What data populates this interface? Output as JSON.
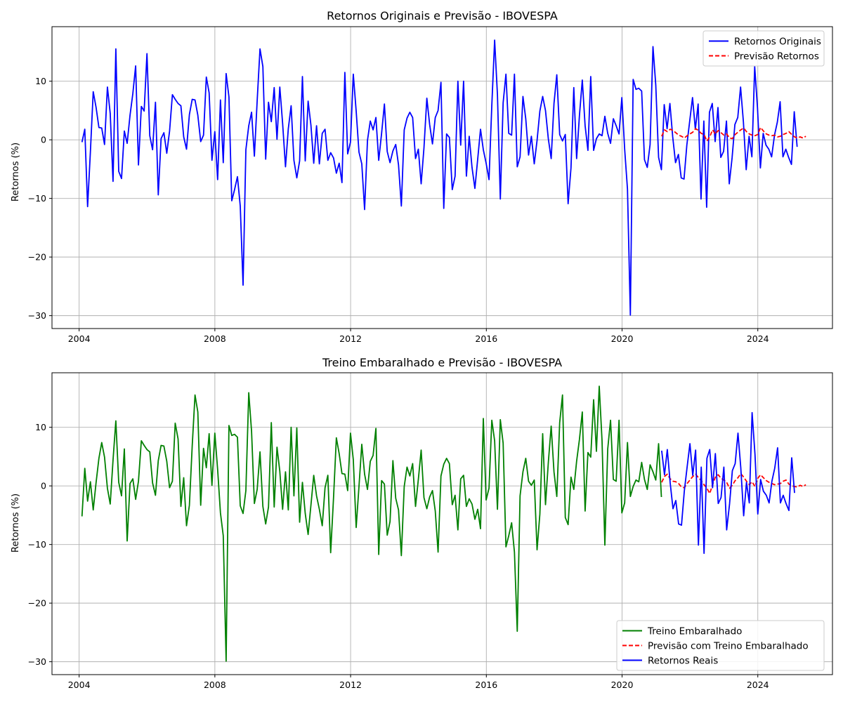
{
  "chart_data": [
    {
      "type": "line",
      "title": "Retornos Originais e Previsão - IBOVESPA",
      "xlabel": "",
      "ylabel": "Retornos (%)",
      "xlim": [
        2003.2,
        2026.2
      ],
      "ylim": [
        -32.2,
        19.3
      ],
      "xticks": [
        2004,
        2008,
        2012,
        2016,
        2020,
        2024
      ],
      "xtick_labels": [
        "2004",
        "2008",
        "2012",
        "2016",
        "2020",
        "2024"
      ],
      "yticks": [
        -30,
        -20,
        -10,
        0,
        10
      ],
      "ytick_labels": [
        "−30",
        "−20",
        "−10",
        "0",
        "10"
      ],
      "grid": true,
      "legend": "top-right",
      "series": [
        {
          "name": "Retornos Originais",
          "color": "#0000ff",
          "dash": "solid",
          "x_start": 2004.083,
          "x_step": 0.0833,
          "values": [
            -0.4,
            1.8,
            -11.4,
            -2.0,
            8.2,
            5.5,
            2.1,
            2.0,
            -0.8,
            9.0,
            4.5,
            -7.1,
            15.5,
            -5.4,
            -6.6,
            1.5,
            -0.6,
            4.2,
            7.9,
            12.6,
            -4.3,
            5.7,
            4.9,
            14.7,
            0.7,
            -1.7,
            6.4,
            -9.4,
            0.2,
            1.2,
            -2.3,
            1.5,
            7.7,
            6.9,
            6.2,
            5.8,
            0.5,
            -1.6,
            4.3,
            6.9,
            6.8,
            4.2,
            -0.3,
            0.8,
            10.7,
            8.0,
            -3.5,
            1.4,
            -6.8,
            6.8,
            -3.9,
            11.3,
            7.3,
            -10.4,
            -8.5,
            -6.3,
            -11.3,
            -24.8,
            -1.7,
            2.4,
            4.7,
            -2.8,
            6.7,
            15.5,
            12.5,
            -3.3,
            6.4,
            3.1,
            8.9,
            0.1,
            9.0,
            2.8,
            -4.6,
            1.9,
            5.8,
            -3.5,
            -6.5,
            -3.6,
            10.8,
            -3.6,
            6.6,
            2.5,
            -4.0,
            2.4,
            -4.1,
            1.1,
            1.8,
            -3.5,
            -2.2,
            -3.1,
            -5.7,
            -4.0,
            -7.3,
            11.5,
            -2.4,
            -0.4,
            11.2,
            4.9,
            -2.1,
            -4.1,
            -11.9,
            -0.1,
            3.2,
            1.7,
            3.8,
            -3.5,
            1.1,
            6.1,
            -2.0,
            -3.9,
            -1.9,
            -0.8,
            -4.3,
            -11.3,
            1.7,
            3.7,
            4.7,
            3.8,
            -3.2,
            -1.6,
            -7.5,
            -1.4,
            7.1,
            2.6,
            -0.7,
            3.8,
            5.0,
            9.8,
            -11.7,
            1.0,
            0.4,
            -8.5,
            -6.2,
            10.0,
            -0.9,
            10.0,
            -6.2,
            0.6,
            -4.7,
            -8.3,
            -3.3,
            1.8,
            -1.7,
            -4.0,
            -6.8,
            5.9,
            17.0,
            7.7,
            -10.1,
            6.3,
            11.2,
            1.1,
            0.8,
            11.2,
            -4.6,
            -2.9,
            7.4,
            3.6,
            -2.6,
            0.6,
            -4.1,
            -0.1,
            4.9,
            7.4,
            5.0,
            0.1,
            -3.2,
            6.2,
            11.1,
            0.9,
            -0.2,
            0.9,
            -10.9,
            -4.8,
            8.9,
            -3.2,
            4.1,
            10.2,
            2.4,
            -1.8,
            10.8,
            -1.8,
            0.2,
            1.0,
            0.7,
            4.0,
            1.1,
            -0.6,
            3.6,
            2.4,
            1.0,
            7.2,
            -1.6,
            -8.4,
            -29.9,
            10.3,
            8.6,
            8.8,
            8.3,
            -3.4,
            -4.7,
            -0.8,
            15.9,
            9.3,
            -3.0,
            -5.1,
            6.0,
            1.9,
            6.2,
            0.5,
            -3.9,
            -2.5,
            -6.5,
            -6.7,
            -0.9,
            3.2,
            7.2,
            1.8,
            6.1,
            -10.1,
            3.2,
            -11.5,
            4.7,
            6.2,
            -0.3,
            5.5,
            -3.0,
            -2.0,
            3.2,
            -7.5,
            -3.1,
            2.6,
            3.8,
            9.0,
            3.1,
            -5.1,
            0.6,
            -2.9,
            12.5,
            5.4,
            -4.8,
            1.1,
            -0.9,
            -1.6,
            -2.9,
            0.8,
            3.0,
            6.5,
            -2.9,
            -1.6,
            -3.0,
            -4.2,
            4.8,
            -1.2
          ]
        },
        {
          "name": "Previsão Retornos",
          "color": "#ff0000",
          "dash": "dashed",
          "x_start": 2021.167,
          "x_step": 0.0833,
          "values": [
            0.6,
            1.7,
            1.4,
            1.8,
            1.6,
            1.2,
            0.8,
            0.6,
            0.3,
            0.7,
            1.0,
            1.3,
            1.9,
            1.6,
            1.1,
            0.9,
            -0.2,
            0.5,
            1.7,
            1.0,
            1.6,
            1.2,
            0.8,
            1.0,
            0.3,
            0.2,
            0.9,
            1.3,
            1.7,
            2.0,
            1.4,
            1.0,
            0.8,
            0.7,
            0.9,
            2.1,
            1.5,
            1.0,
            0.8,
            0.7,
            0.8,
            0.5,
            0.6,
            0.9,
            1.1,
            1.4,
            0.9,
            0.5,
            0.3,
            0.5,
            0.3,
            0.6
          ]
        }
      ]
    },
    {
      "type": "line",
      "title": "Treino Embaralhado e Previsão - IBOVESPA",
      "xlabel": "",
      "ylabel": "Retornos (%)",
      "xlim": [
        2003.2,
        2026.2
      ],
      "ylim": [
        -32.2,
        19.3
      ],
      "xticks": [
        2004,
        2008,
        2012,
        2016,
        2020,
        2024
      ],
      "xtick_labels": [
        "2004",
        "2008",
        "2012",
        "2016",
        "2020",
        "2024"
      ],
      "yticks": [
        -30,
        -20,
        -10,
        0,
        10
      ],
      "ytick_labels": [
        "−30",
        "−20",
        "−10",
        "0",
        "10"
      ],
      "grid": true,
      "legend": "bottom-right",
      "series": [
        {
          "name": "Treino Embaralhado",
          "color": "#008000",
          "dash": "solid",
          "x_start": 2004.083,
          "x_step": 0.0833,
          "values": [
            -5.2,
            3.0,
            -2.6,
            0.7,
            -4.1,
            0.6,
            4.7,
            7.4,
            4.9,
            -0.4,
            -3.1,
            4.4,
            11.1,
            0.6,
            -1.7,
            6.3,
            -9.4,
            0.4,
            1.2,
            -2.3,
            0.8,
            7.7,
            6.9,
            6.2,
            5.8,
            0.5,
            -1.6,
            4.3,
            6.9,
            6.8,
            4.2,
            -0.3,
            0.8,
            10.7,
            8.0,
            -3.5,
            1.4,
            -6.8,
            -3.3,
            6.8,
            15.5,
            12.6,
            -3.3,
            6.4,
            3.1,
            8.9,
            0.1,
            9.0,
            2.8,
            -4.6,
            -8.5,
            -29.9,
            10.3,
            8.6,
            8.8,
            8.3,
            -3.4,
            -4.7,
            -0.8,
            15.9,
            9.3,
            -3.0,
            -0.6,
            5.8,
            -3.5,
            -6.5,
            -3.6,
            10.8,
            -3.6,
            6.6,
            2.5,
            -4.0,
            2.4,
            -4.1,
            10.0,
            -1.7,
            9.9,
            -6.2,
            0.6,
            -4.7,
            -8.3,
            -3.3,
            1.8,
            -1.7,
            -4.0,
            -6.8,
            -0.3,
            1.8,
            -11.4,
            -2.0,
            8.2,
            5.5,
            2.1,
            2.0,
            -0.8,
            9.0,
            4.5,
            -7.1,
            -0.1,
            7.1,
            2.0,
            -0.6,
            4.2,
            5.2,
            9.8,
            -11.7,
            0.9,
            0.3,
            -8.4,
            -6.1,
            4.3,
            -2.1,
            -4.1,
            -11.9,
            -0.1,
            3.2,
            1.7,
            3.8,
            -3.5,
            1.1,
            6.1,
            -2.0,
            -3.9,
            -1.9,
            -0.8,
            -4.3,
            -11.3,
            1.7,
            3.7,
            4.7,
            3.8,
            -3.2,
            -1.6,
            -7.5,
            1.2,
            1.8,
            -3.5,
            -2.2,
            -3.1,
            -5.7,
            -4.0,
            -7.3,
            11.5,
            -2.4,
            -0.4,
            11.2,
            7.7,
            -4.0,
            11.3,
            7.3,
            -10.4,
            -8.5,
            -6.3,
            -11.3,
            -24.8,
            -1.7,
            2.4,
            4.7,
            0.8,
            0.1,
            1.0,
            -10.9,
            -4.8,
            8.9,
            -3.2,
            4.1,
            10.2,
            2.4,
            -1.8,
            10.8,
            15.5,
            -5.4,
            -6.6,
            1.5,
            -0.6,
            4.2,
            7.9,
            12.6,
            -4.3,
            5.7,
            4.9,
            14.7,
            5.9,
            17.0,
            7.7,
            -10.1,
            6.3,
            11.2,
            1.1,
            0.8,
            11.2,
            -4.6,
            -2.9,
            7.4,
            -1.8,
            -0.1,
            1.0,
            0.7,
            4.0,
            1.1,
            -0.6,
            3.6,
            2.4,
            1.0,
            7.2,
            -1.9
          ]
        },
        {
          "name": "Previsão com Treino Embaralhado",
          "color": "#ff0000",
          "dash": "dashed",
          "x_start": 2021.167,
          "x_step": 0.0833,
          "values": [
            0.6,
            1.6,
            2.0,
            1.2,
            0.8,
            0.7,
            0.4,
            -0.2,
            -0.3,
            0.4,
            1.0,
            1.6,
            2.0,
            1.4,
            0.9,
            0.2,
            -0.4,
            -1.3,
            0.2,
            1.5,
            1.9,
            1.3,
            1.0,
            0.6,
            -0.4,
            0.1,
            0.9,
            1.4,
            2.1,
            1.5,
            0.8,
            0.2,
            0.7,
            -0.1,
            1.3,
            1.9,
            1.4,
            0.9,
            0.6,
            0.4,
            0.2,
            0.3,
            0.4,
            0.8,
            1.0,
            0.3,
            0.0,
            -0.1,
            -0.2,
            0.1,
            -0.1,
            0.2
          ]
        },
        {
          "name": "Retornos Reais",
          "color": "#0000ff",
          "dash": "solid",
          "x_start": 2021.167,
          "x_step": 0.0833,
          "values": [
            6.0,
            1.9,
            6.2,
            0.5,
            -3.9,
            -2.5,
            -6.5,
            -6.7,
            -0.9,
            3.2,
            7.2,
            1.8,
            6.1,
            -10.1,
            3.2,
            -11.5,
            4.7,
            6.2,
            -0.3,
            5.5,
            -3.0,
            -2.0,
            3.2,
            -7.5,
            -3.1,
            2.6,
            3.8,
            9.0,
            3.1,
            -5.1,
            0.6,
            -2.9,
            12.5,
            5.4,
            -4.8,
            1.1,
            -0.9,
            -1.6,
            -2.9,
            0.8,
            3.0,
            6.5,
            -2.9,
            -1.6,
            -3.0,
            -4.2,
            4.8,
            -1.2
          ]
        }
      ]
    }
  ]
}
